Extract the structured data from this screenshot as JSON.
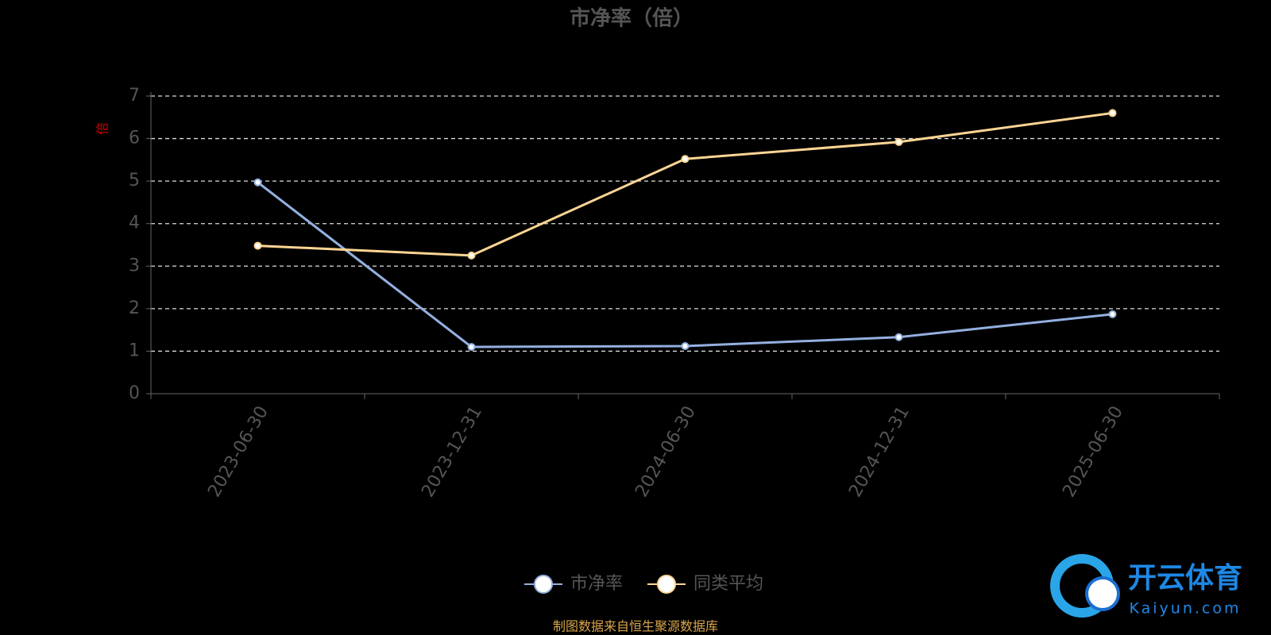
{
  "chart_data": {
    "type": "line",
    "title": "市净率（倍）",
    "y_label": "倍",
    "categories": [
      "2023-06-30",
      "2023-12-31",
      "2024-06-30",
      "2024-12-31",
      "2025-06-30"
    ],
    "series": [
      {
        "name": "市净率",
        "color": "#93b0e0",
        "values": [
          4.97,
          1.1,
          1.12,
          1.33,
          1.87
        ]
      },
      {
        "name": "同类平均",
        "color": "#fdd593",
        "values": [
          3.48,
          3.25,
          5.52,
          5.92,
          6.6
        ]
      }
    ],
    "ylim": [
      0,
      7
    ],
    "yticks": [
      0,
      1,
      2,
      3,
      4,
      5,
      6,
      7
    ],
    "grid": true,
    "legend": "bottom",
    "source": "制图数据来自恒生聚源数据库"
  },
  "watermark": {
    "brand": "开云体育",
    "site": "Kaiyun.com"
  }
}
